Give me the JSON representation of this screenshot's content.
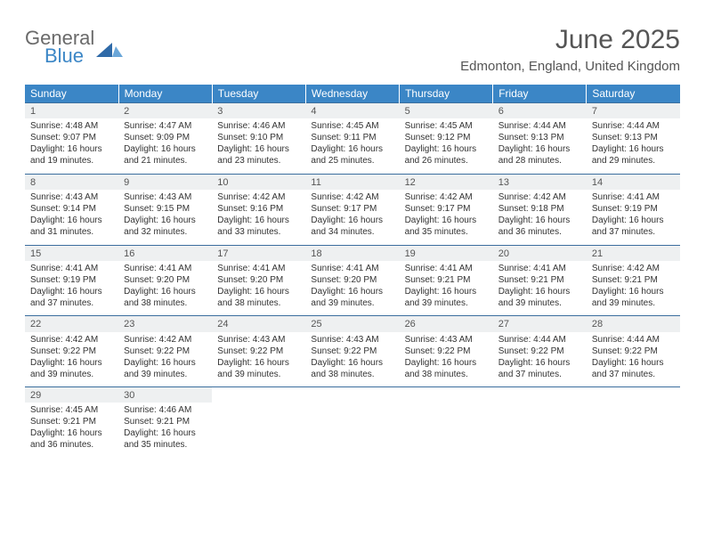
{
  "logo": {
    "word1": "General",
    "word2": "Blue"
  },
  "title": "June 2025",
  "location": "Edmonton, England, United Kingdom",
  "colors": {
    "header_bg": "#3b86c6",
    "header_fg": "#ffffff",
    "daynum_bg": "#eef0f1",
    "rule": "#3b6e9e",
    "text": "#333333",
    "title": "#555555",
    "logo_gray": "#6a6a6a",
    "logo_blue": "#3b86c6",
    "page_bg": "#ffffff"
  },
  "typography": {
    "title_pt": 30,
    "location_pt": 15,
    "weekday_pt": 12,
    "daynum_pt": 11,
    "body_pt": 10,
    "family": "Arial"
  },
  "weekdays": [
    "Sunday",
    "Monday",
    "Tuesday",
    "Wednesday",
    "Thursday",
    "Friday",
    "Saturday"
  ],
  "weeks": [
    [
      {
        "n": "1",
        "sr": "Sunrise: 4:48 AM",
        "ss": "Sunset: 9:07 PM",
        "d1": "Daylight: 16 hours",
        "d2": "and 19 minutes."
      },
      {
        "n": "2",
        "sr": "Sunrise: 4:47 AM",
        "ss": "Sunset: 9:09 PM",
        "d1": "Daylight: 16 hours",
        "d2": "and 21 minutes."
      },
      {
        "n": "3",
        "sr": "Sunrise: 4:46 AM",
        "ss": "Sunset: 9:10 PM",
        "d1": "Daylight: 16 hours",
        "d2": "and 23 minutes."
      },
      {
        "n": "4",
        "sr": "Sunrise: 4:45 AM",
        "ss": "Sunset: 9:11 PM",
        "d1": "Daylight: 16 hours",
        "d2": "and 25 minutes."
      },
      {
        "n": "5",
        "sr": "Sunrise: 4:45 AM",
        "ss": "Sunset: 9:12 PM",
        "d1": "Daylight: 16 hours",
        "d2": "and 26 minutes."
      },
      {
        "n": "6",
        "sr": "Sunrise: 4:44 AM",
        "ss": "Sunset: 9:13 PM",
        "d1": "Daylight: 16 hours",
        "d2": "and 28 minutes."
      },
      {
        "n": "7",
        "sr": "Sunrise: 4:44 AM",
        "ss": "Sunset: 9:13 PM",
        "d1": "Daylight: 16 hours",
        "d2": "and 29 minutes."
      }
    ],
    [
      {
        "n": "8",
        "sr": "Sunrise: 4:43 AM",
        "ss": "Sunset: 9:14 PM",
        "d1": "Daylight: 16 hours",
        "d2": "and 31 minutes."
      },
      {
        "n": "9",
        "sr": "Sunrise: 4:43 AM",
        "ss": "Sunset: 9:15 PM",
        "d1": "Daylight: 16 hours",
        "d2": "and 32 minutes."
      },
      {
        "n": "10",
        "sr": "Sunrise: 4:42 AM",
        "ss": "Sunset: 9:16 PM",
        "d1": "Daylight: 16 hours",
        "d2": "and 33 minutes."
      },
      {
        "n": "11",
        "sr": "Sunrise: 4:42 AM",
        "ss": "Sunset: 9:17 PM",
        "d1": "Daylight: 16 hours",
        "d2": "and 34 minutes."
      },
      {
        "n": "12",
        "sr": "Sunrise: 4:42 AM",
        "ss": "Sunset: 9:17 PM",
        "d1": "Daylight: 16 hours",
        "d2": "and 35 minutes."
      },
      {
        "n": "13",
        "sr": "Sunrise: 4:42 AM",
        "ss": "Sunset: 9:18 PM",
        "d1": "Daylight: 16 hours",
        "d2": "and 36 minutes."
      },
      {
        "n": "14",
        "sr": "Sunrise: 4:41 AM",
        "ss": "Sunset: 9:19 PM",
        "d1": "Daylight: 16 hours",
        "d2": "and 37 minutes."
      }
    ],
    [
      {
        "n": "15",
        "sr": "Sunrise: 4:41 AM",
        "ss": "Sunset: 9:19 PM",
        "d1": "Daylight: 16 hours",
        "d2": "and 37 minutes."
      },
      {
        "n": "16",
        "sr": "Sunrise: 4:41 AM",
        "ss": "Sunset: 9:20 PM",
        "d1": "Daylight: 16 hours",
        "d2": "and 38 minutes."
      },
      {
        "n": "17",
        "sr": "Sunrise: 4:41 AM",
        "ss": "Sunset: 9:20 PM",
        "d1": "Daylight: 16 hours",
        "d2": "and 38 minutes."
      },
      {
        "n": "18",
        "sr": "Sunrise: 4:41 AM",
        "ss": "Sunset: 9:20 PM",
        "d1": "Daylight: 16 hours",
        "d2": "and 39 minutes."
      },
      {
        "n": "19",
        "sr": "Sunrise: 4:41 AM",
        "ss": "Sunset: 9:21 PM",
        "d1": "Daylight: 16 hours",
        "d2": "and 39 minutes."
      },
      {
        "n": "20",
        "sr": "Sunrise: 4:41 AM",
        "ss": "Sunset: 9:21 PM",
        "d1": "Daylight: 16 hours",
        "d2": "and 39 minutes."
      },
      {
        "n": "21",
        "sr": "Sunrise: 4:42 AM",
        "ss": "Sunset: 9:21 PM",
        "d1": "Daylight: 16 hours",
        "d2": "and 39 minutes."
      }
    ],
    [
      {
        "n": "22",
        "sr": "Sunrise: 4:42 AM",
        "ss": "Sunset: 9:22 PM",
        "d1": "Daylight: 16 hours",
        "d2": "and 39 minutes."
      },
      {
        "n": "23",
        "sr": "Sunrise: 4:42 AM",
        "ss": "Sunset: 9:22 PM",
        "d1": "Daylight: 16 hours",
        "d2": "and 39 minutes."
      },
      {
        "n": "24",
        "sr": "Sunrise: 4:43 AM",
        "ss": "Sunset: 9:22 PM",
        "d1": "Daylight: 16 hours",
        "d2": "and 39 minutes."
      },
      {
        "n": "25",
        "sr": "Sunrise: 4:43 AM",
        "ss": "Sunset: 9:22 PM",
        "d1": "Daylight: 16 hours",
        "d2": "and 38 minutes."
      },
      {
        "n": "26",
        "sr": "Sunrise: 4:43 AM",
        "ss": "Sunset: 9:22 PM",
        "d1": "Daylight: 16 hours",
        "d2": "and 38 minutes."
      },
      {
        "n": "27",
        "sr": "Sunrise: 4:44 AM",
        "ss": "Sunset: 9:22 PM",
        "d1": "Daylight: 16 hours",
        "d2": "and 37 minutes."
      },
      {
        "n": "28",
        "sr": "Sunrise: 4:44 AM",
        "ss": "Sunset: 9:22 PM",
        "d1": "Daylight: 16 hours",
        "d2": "and 37 minutes."
      }
    ],
    [
      {
        "n": "29",
        "sr": "Sunrise: 4:45 AM",
        "ss": "Sunset: 9:21 PM",
        "d1": "Daylight: 16 hours",
        "d2": "and 36 minutes."
      },
      {
        "n": "30",
        "sr": "Sunrise: 4:46 AM",
        "ss": "Sunset: 9:21 PM",
        "d1": "Daylight: 16 hours",
        "d2": "and 35 minutes."
      },
      null,
      null,
      null,
      null,
      null
    ]
  ]
}
